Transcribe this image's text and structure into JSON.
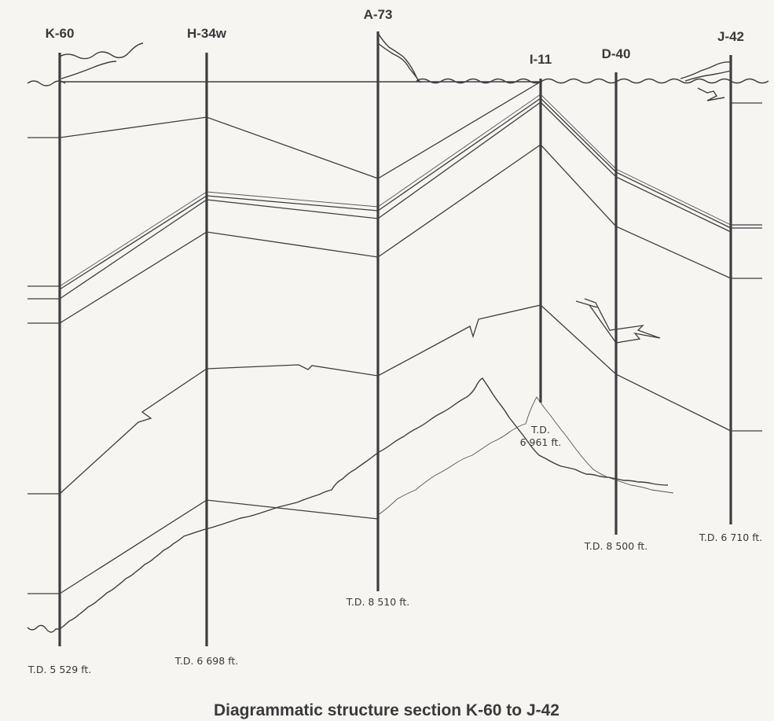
{
  "wells": [
    {
      "id": "K-60",
      "td": "T.D. 5 529 ft."
    },
    {
      "id": "H-34w",
      "td": "T.D. 6 698 ft."
    },
    {
      "id": "A-73",
      "td": "T.D. 8 510 ft."
    },
    {
      "id": "I-11",
      "td_line1": "T.D.",
      "td_line2": "6 961 ft."
    },
    {
      "id": "D-40",
      "td": "T.D. 8 500 ft."
    },
    {
      "id": "J-42",
      "td": "T.D. 6 710 ft."
    }
  ],
  "caption": "Diagrammatic structure section K-60 to J-42"
}
